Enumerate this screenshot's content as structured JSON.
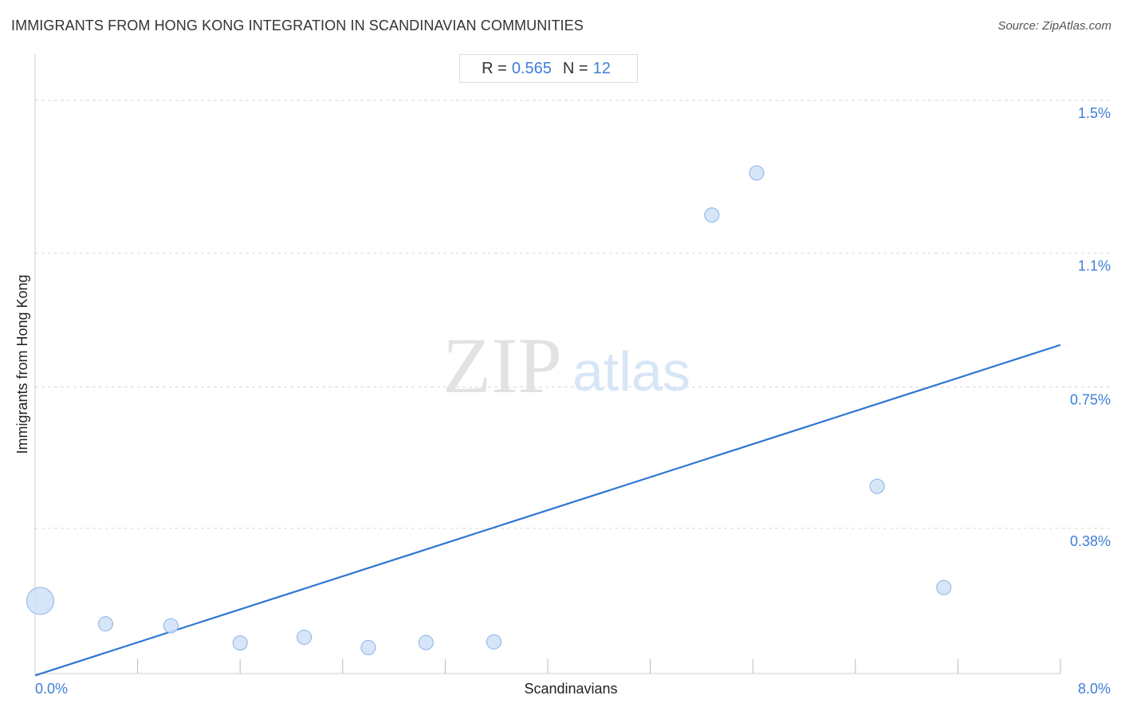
{
  "header": {
    "title": "IMMIGRANTS FROM HONG KONG INTEGRATION IN SCANDINAVIAN COMMUNITIES",
    "source": "Source: ZipAtlas.com"
  },
  "stats": {
    "r_label": "R =",
    "r_value": "0.565",
    "n_label": "N =",
    "n_value": "12"
  },
  "watermark": {
    "zip": "ZIP",
    "atlas": "atlas"
  },
  "colors": {
    "accent": "#3d7fd6",
    "point_fill": "#cfe0f7",
    "point_stroke": "#8ab3e6",
    "trend": "#2f76d2",
    "grid": "#d9d9d9"
  },
  "chart_data": {
    "type": "scatter",
    "title": "IMMIGRANTS FROM HONG KONG INTEGRATION IN SCANDINAVIAN COMMUNITIES",
    "xlabel": "Scandinavians",
    "ylabel": "Immigrants from Hong Kong",
    "xlim": [
      0,
      8.0
    ],
    "ylim": [
      0,
      1.6
    ],
    "x_tick_labels": [
      {
        "value": 0,
        "label": "0.0%"
      },
      {
        "value": 8.0,
        "label": "8.0%"
      }
    ],
    "y_tick_labels": [
      {
        "value": 0.38,
        "label": "0.38%"
      },
      {
        "value": 0.75,
        "label": "0.75%"
      },
      {
        "value": 1.1,
        "label": "1.1%"
      },
      {
        "value": 1.5,
        "label": "1.5%"
      }
    ],
    "grid": true,
    "points": [
      {
        "x": 0.04,
        "y": 0.19,
        "size": "large"
      },
      {
        "x": 0.55,
        "y": 0.13,
        "size": "small"
      },
      {
        "x": 1.06,
        "y": 0.125,
        "size": "small"
      },
      {
        "x": 1.6,
        "y": 0.08,
        "size": "small"
      },
      {
        "x": 2.1,
        "y": 0.095,
        "size": "small"
      },
      {
        "x": 2.6,
        "y": 0.068,
        "size": "small"
      },
      {
        "x": 3.05,
        "y": 0.081,
        "size": "small"
      },
      {
        "x": 3.58,
        "y": 0.083,
        "size": "small"
      },
      {
        "x": 5.28,
        "y": 1.2,
        "size": "small"
      },
      {
        "x": 5.63,
        "y": 1.31,
        "size": "small"
      },
      {
        "x": 6.57,
        "y": 0.49,
        "size": "small"
      },
      {
        "x": 7.09,
        "y": 0.225,
        "size": "small"
      }
    ],
    "trendline": {
      "x": [
        0,
        8.0
      ],
      "y": [
        -0.005,
        0.86
      ]
    },
    "stats": {
      "R": 0.565,
      "N": 12
    }
  }
}
